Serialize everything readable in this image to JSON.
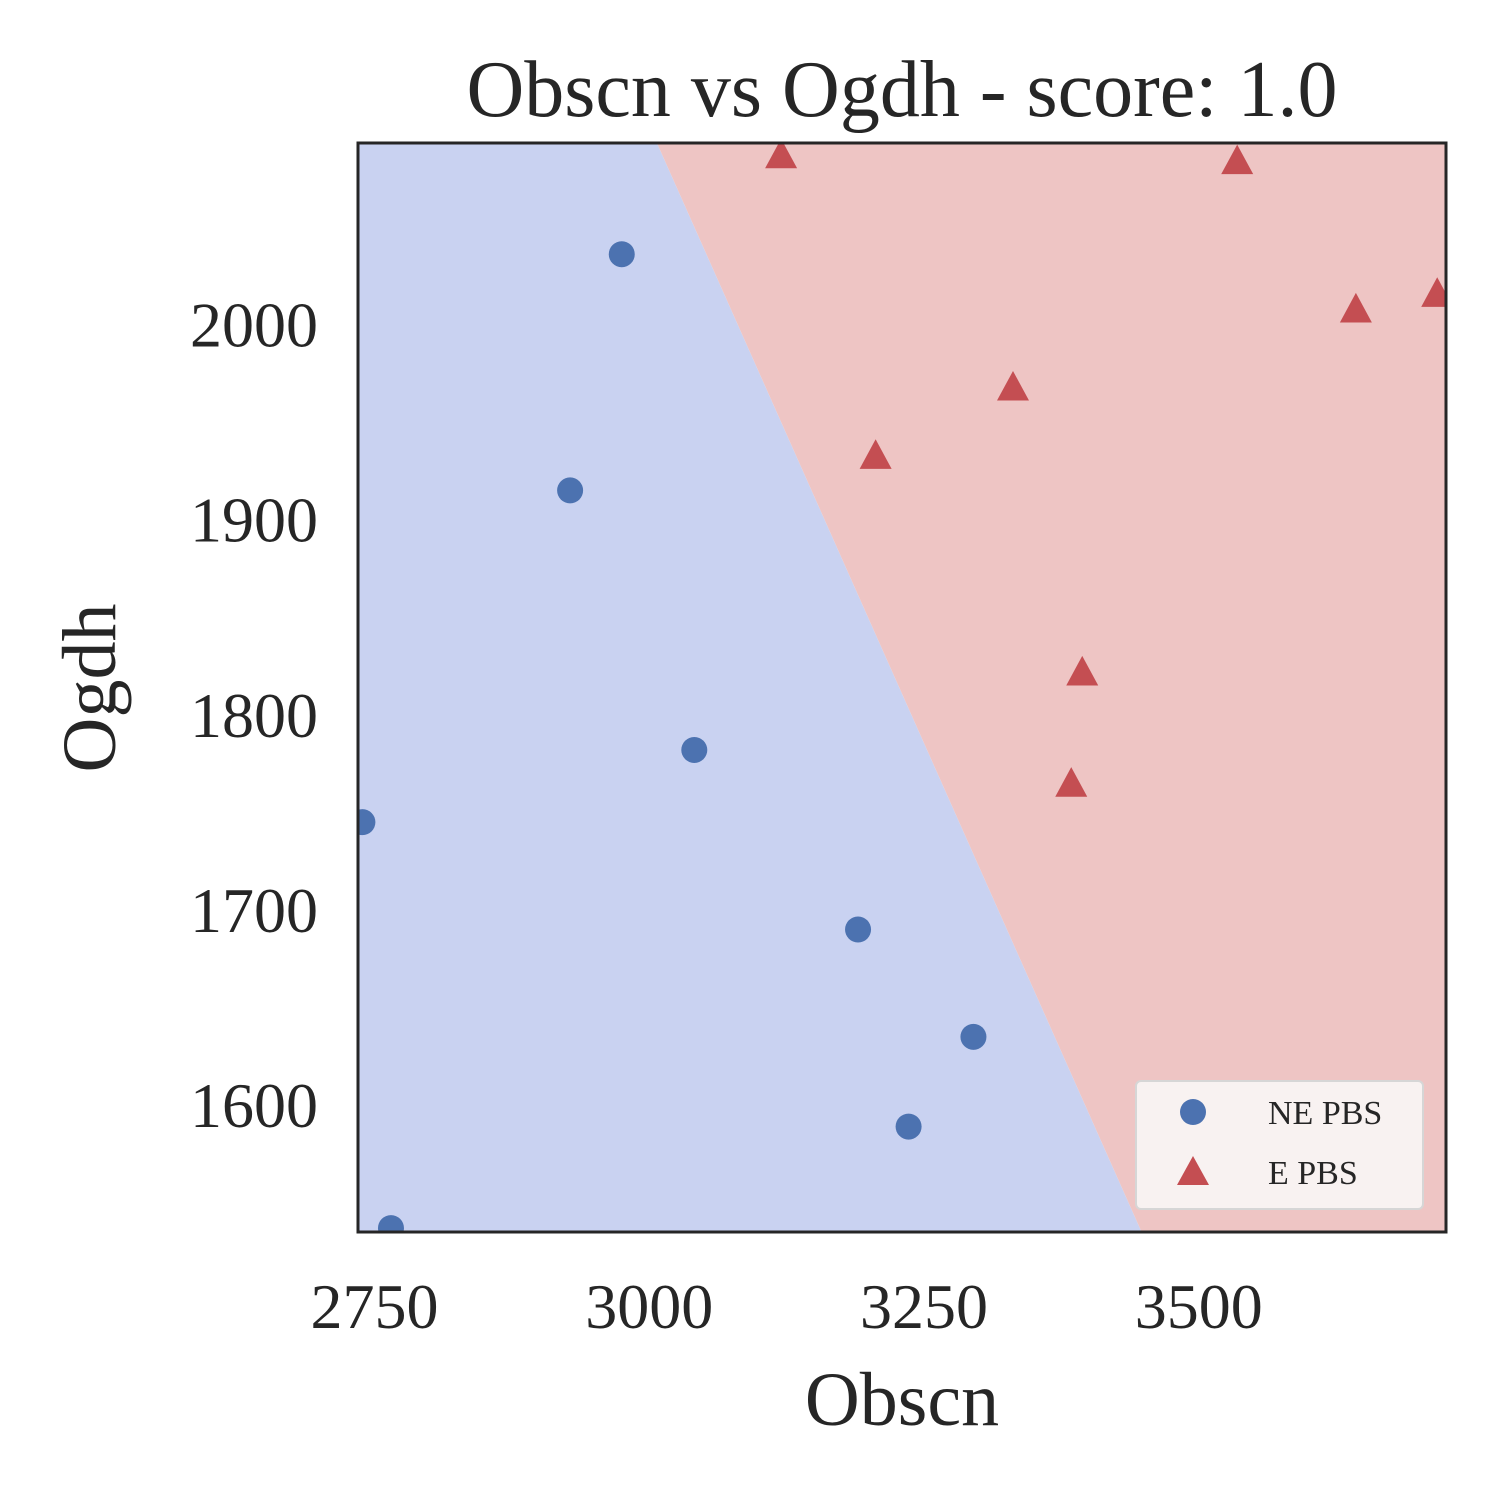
{
  "chart_data": {
    "type": "scatter",
    "title": "Obscn vs Ogdh - score: 1.0",
    "xlabel": "Obscn",
    "ylabel": "Ogdh",
    "xlim": [
      2735,
      3725
    ],
    "ylim": [
      1535,
      2093
    ],
    "xticks": [
      2750,
      3000,
      3250,
      3500
    ],
    "yticks": [
      1600,
      1700,
      1800,
      1900,
      2000
    ],
    "grid": false,
    "legend_position": "lower-right",
    "decision_boundary": {
      "x_at_top": 3007,
      "x_at_bottom": 3448,
      "left_region_color": "#c9d2f1",
      "right_region_color": "#eec5c4"
    },
    "series": [
      {
        "name": "NE PBS",
        "marker": "circle",
        "color": "#4c72b0",
        "points": [
          [
            2975,
            2036
          ],
          [
            2928,
            1915
          ],
          [
            3041,
            1782
          ],
          [
            2739,
            1745
          ],
          [
            3190,
            1690
          ],
          [
            3295,
            1635
          ],
          [
            3236,
            1589
          ],
          [
            2765,
            1537
          ]
        ]
      },
      {
        "name": "E PBS",
        "marker": "triangle",
        "color": "#c44e52",
        "points": [
          [
            3120,
            2087
          ],
          [
            3535,
            2084
          ],
          [
            3643,
            2008
          ],
          [
            3717,
            2016
          ],
          [
            3331,
            1968
          ],
          [
            3206,
            1933
          ],
          [
            3394,
            1822
          ],
          [
            3384,
            1765
          ]
        ]
      }
    ]
  }
}
